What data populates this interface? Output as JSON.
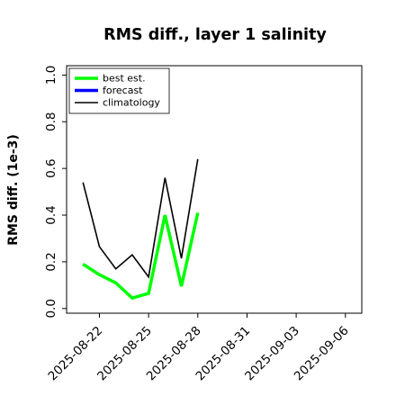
{
  "colors": {
    "best_est": "#00ff00",
    "forecast": "#0000ff",
    "climatology": "#000000",
    "highlight_tick": "#228B22"
  },
  "chart_data": {
    "type": "line",
    "title": "RMS diff., layer 1 salinity",
    "xlabel": "",
    "ylabel": "RMS diff. (1e-3)",
    "ylim": [
      -0.02,
      1.04
    ],
    "xlim": [
      "2025-08-20",
      "2025-09-07"
    ],
    "y_ticks": [
      "0.0",
      "0.2",
      "0.4",
      "0.6",
      "0.8",
      "1.0"
    ],
    "x_ticks": [
      "2025-08-22",
      "2025-08-25",
      "2025-08-28",
      "2025-08-31",
      "2025-09-03",
      "2025-09-06"
    ],
    "highlighted_x_tick": "2025-08-28",
    "grid": false,
    "legend_position": "top-left",
    "series": [
      {
        "name": "best est.",
        "color": "#00ff00",
        "x": [
          "2025-08-21",
          "2025-08-22",
          "2025-08-23",
          "2025-08-24",
          "2025-08-25",
          "2025-08-26",
          "2025-08-27",
          "2025-08-28"
        ],
        "values": [
          0.19,
          0.145,
          0.11,
          0.045,
          0.065,
          0.4,
          0.095,
          0.41
        ]
      },
      {
        "name": "forecast",
        "color": "#0000ff",
        "x": [],
        "values": []
      },
      {
        "name": "climatology",
        "color": "#000000",
        "x": [
          "2025-08-21",
          "2025-08-22",
          "2025-08-23",
          "2025-08-24",
          "2025-08-25",
          "2025-08-26",
          "2025-08-27",
          "2025-08-28"
        ],
        "values": [
          0.54,
          0.265,
          0.17,
          0.23,
          0.135,
          0.56,
          0.215,
          0.64
        ]
      }
    ]
  }
}
